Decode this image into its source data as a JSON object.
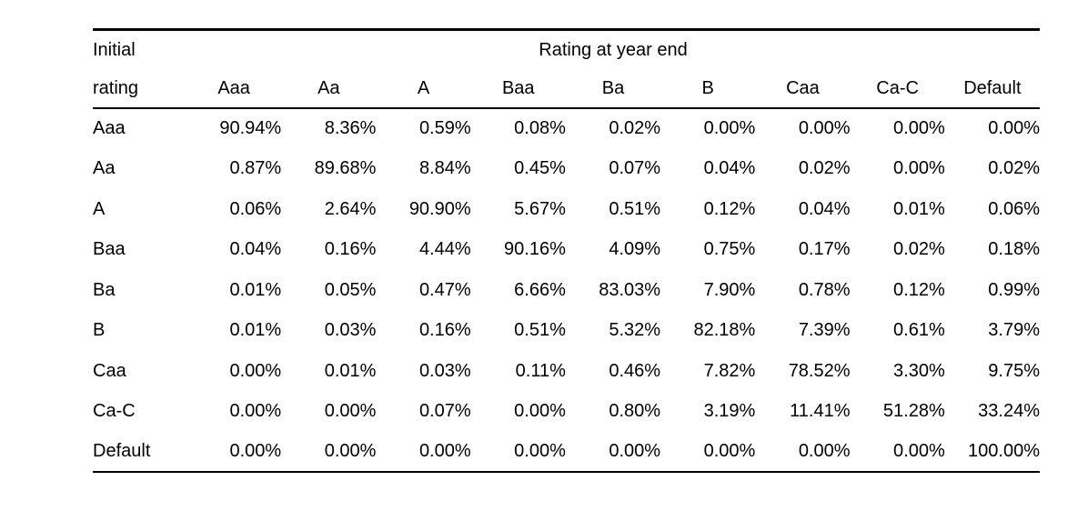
{
  "table": {
    "corner_label_line1": "Initial",
    "corner_label_line2": "rating",
    "group_header": "Rating at year end",
    "columns": [
      "Aaa",
      "Aa",
      "A",
      "Baa",
      "Ba",
      "B",
      "Caa",
      "Ca-C",
      "Default"
    ],
    "rows": [
      {
        "label": "Aaa",
        "values": [
          "90.94%",
          "8.36%",
          "0.59%",
          "0.08%",
          "0.02%",
          "0.00%",
          "0.00%",
          "0.00%",
          "0.00%"
        ]
      },
      {
        "label": "Aa",
        "values": [
          "0.87%",
          "89.68%",
          "8.84%",
          "0.45%",
          "0.07%",
          "0.04%",
          "0.02%",
          "0.00%",
          "0.02%"
        ]
      },
      {
        "label": "A",
        "values": [
          "0.06%",
          "2.64%",
          "90.90%",
          "5.67%",
          "0.51%",
          "0.12%",
          "0.04%",
          "0.01%",
          "0.06%"
        ]
      },
      {
        "label": "Baa",
        "values": [
          "0.04%",
          "0.16%",
          "4.44%",
          "90.16%",
          "4.09%",
          "0.75%",
          "0.17%",
          "0.02%",
          "0.18%"
        ]
      },
      {
        "label": "Ba",
        "values": [
          "0.01%",
          "0.05%",
          "0.47%",
          "6.66%",
          "83.03%",
          "7.90%",
          "0.78%",
          "0.12%",
          "0.99%"
        ]
      },
      {
        "label": "B",
        "values": [
          "0.01%",
          "0.03%",
          "0.16%",
          "0.51%",
          "5.32%",
          "82.18%",
          "7.39%",
          "0.61%",
          "3.79%"
        ]
      },
      {
        "label": "Caa",
        "values": [
          "0.00%",
          "0.01%",
          "0.03%",
          "0.11%",
          "0.46%",
          "7.82%",
          "78.52%",
          "3.30%",
          "9.75%"
        ]
      },
      {
        "label": "Ca-C",
        "values": [
          "0.00%",
          "0.00%",
          "0.07%",
          "0.00%",
          "0.80%",
          "3.19%",
          "11.41%",
          "51.28%",
          "33.24%"
        ]
      },
      {
        "label": "Default",
        "values": [
          "0.00%",
          "0.00%",
          "0.00%",
          "0.00%",
          "0.00%",
          "0.00%",
          "0.00%",
          "0.00%",
          "100.00%"
        ]
      }
    ],
    "text_color": "#000000",
    "background_color": "#ffffff"
  },
  "chart_data": {
    "type": "table",
    "title": "Rating at year end",
    "row_label_header": "Initial rating",
    "columns": [
      "Aaa",
      "Aa",
      "A",
      "Baa",
      "Ba",
      "B",
      "Caa",
      "Ca-C",
      "Default"
    ],
    "rows": [
      "Aaa",
      "Aa",
      "A",
      "Baa",
      "Ba",
      "B",
      "Caa",
      "Ca-C",
      "Default"
    ],
    "values_percent": [
      [
        90.94,
        8.36,
        0.59,
        0.08,
        0.02,
        0.0,
        0.0,
        0.0,
        0.0
      ],
      [
        0.87,
        89.68,
        8.84,
        0.45,
        0.07,
        0.04,
        0.02,
        0.0,
        0.02
      ],
      [
        0.06,
        2.64,
        90.9,
        5.67,
        0.51,
        0.12,
        0.04,
        0.01,
        0.06
      ],
      [
        0.04,
        0.16,
        4.44,
        90.16,
        4.09,
        0.75,
        0.17,
        0.02,
        0.18
      ],
      [
        0.01,
        0.05,
        0.47,
        6.66,
        83.03,
        7.9,
        0.78,
        0.12,
        0.99
      ],
      [
        0.01,
        0.03,
        0.16,
        0.51,
        5.32,
        82.18,
        7.39,
        0.61,
        3.79
      ],
      [
        0.0,
        0.01,
        0.03,
        0.11,
        0.46,
        7.82,
        78.52,
        3.3,
        9.75
      ],
      [
        0.0,
        0.0,
        0.07,
        0.0,
        0.8,
        3.19,
        11.41,
        51.28,
        33.24
      ],
      [
        0.0,
        0.0,
        0.0,
        0.0,
        0.0,
        0.0,
        0.0,
        0.0,
        100.0
      ]
    ]
  }
}
